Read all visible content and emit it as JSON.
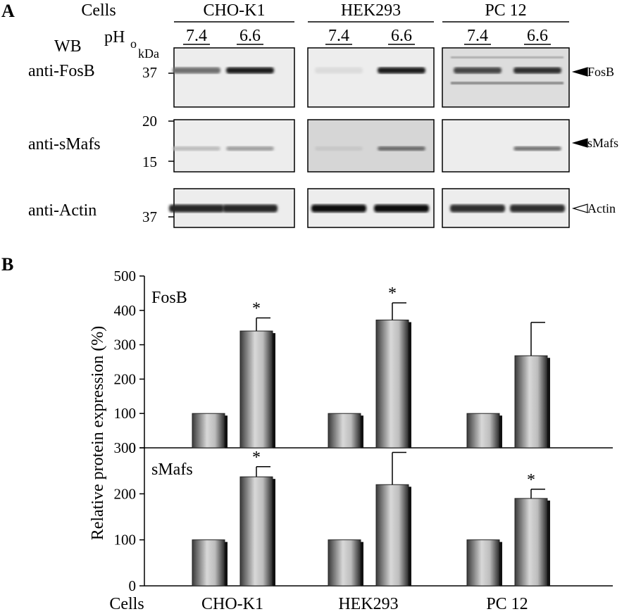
{
  "panel_a": {
    "letter": "A",
    "cells_label": "Cells",
    "pho_label": "pH",
    "pho_sub": "o",
    "wb_label": "WB",
    "kda_label": "kDa",
    "cell_lines": [
      "CHO-K1",
      "HEK293",
      "PC 12"
    ],
    "ph_values": [
      "7.4",
      "6.6"
    ],
    "rows": [
      {
        "antibody": "anti-FosB",
        "markers": [
          "37"
        ],
        "band": "FosB",
        "arrow": "filled"
      },
      {
        "antibody": "anti-sMafs",
        "markers": [
          "20",
          "15"
        ],
        "band": "sMafs",
        "arrow": "filled"
      },
      {
        "antibody": "anti-Actin",
        "markers": [
          "37"
        ],
        "band": "Actin",
        "arrow": "open"
      }
    ],
    "band_intensity_note_colors": {
      "band": "#1a1a1a",
      "bg": "#f2f2f2"
    }
  },
  "panel_b": {
    "letter": "B",
    "cells_label": "Cells",
    "cell_lines": [
      "CHO-K1",
      "HEK293",
      "PC 12"
    ]
  },
  "chart_data": [
    {
      "type": "bar",
      "title": "FosB",
      "ylabel": "Relative protein expression (%)",
      "ylim": [
        0,
        500
      ],
      "yticks": [
        0,
        100,
        200,
        300,
        400,
        500
      ],
      "categories": [
        "CHO-K1",
        "HEK293",
        "PC 12"
      ],
      "series": [
        {
          "name": "7.4",
          "values": [
            100,
            100,
            100
          ],
          "errors": [
            0,
            0,
            0
          ]
        },
        {
          "name": "6.6",
          "values": [
            340,
            372,
            268
          ],
          "errors": [
            38,
            50,
            97
          ]
        }
      ],
      "significance": [
        "*",
        "*",
        ""
      ]
    },
    {
      "type": "bar",
      "title": "sMafs",
      "ylabel": "Relative protein expression (%)",
      "ylim": [
        0,
        300
      ],
      "yticks": [
        0,
        100,
        200,
        300
      ],
      "categories": [
        "CHO-K1",
        "HEK293",
        "PC 12"
      ],
      "series": [
        {
          "name": "7.4",
          "values": [
            100,
            100,
            100
          ],
          "errors": [
            0,
            0,
            0
          ]
        },
        {
          "name": "6.6",
          "values": [
            237,
            220,
            190
          ],
          "errors": [
            22,
            70,
            20
          ]
        }
      ],
      "significance": [
        "*",
        "",
        "*"
      ]
    }
  ]
}
